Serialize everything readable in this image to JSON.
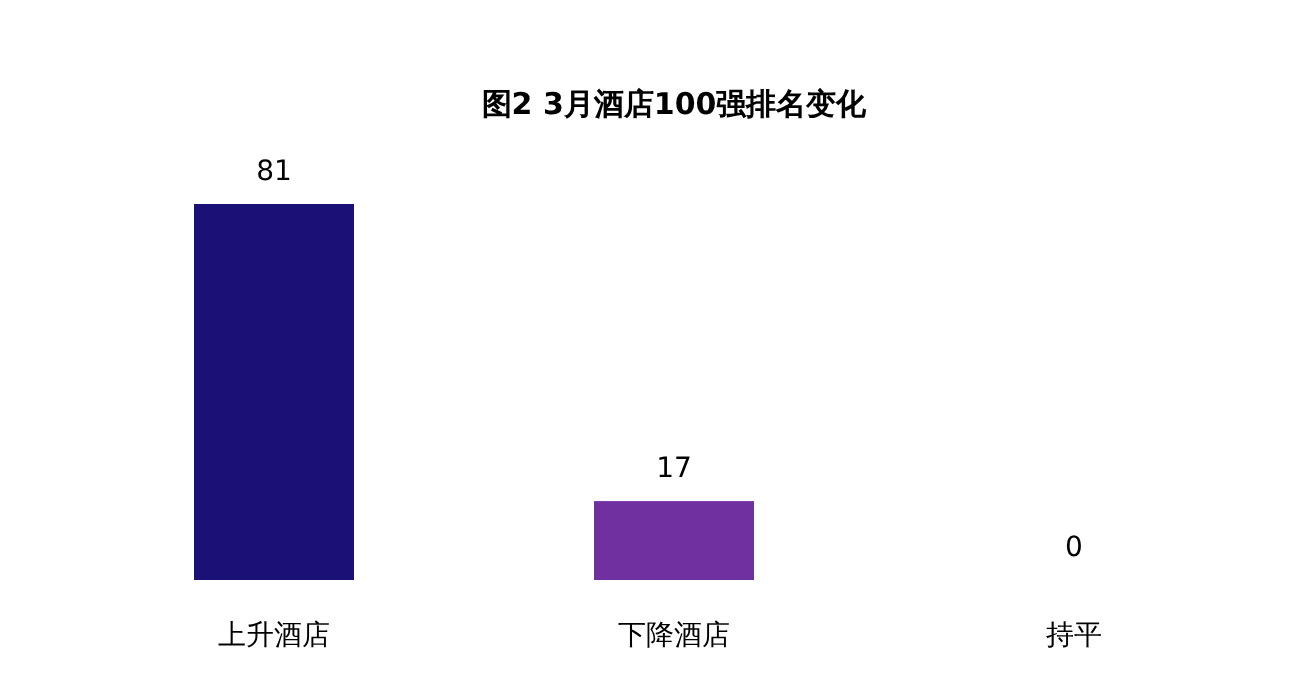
{
  "chart_data": {
    "type": "bar",
    "title": "图2 3月酒店100强排名变化",
    "categories": [
      "上升酒店",
      "下降酒店",
      "持平"
    ],
    "values": [
      81,
      17,
      0
    ],
    "colors": [
      "#1a1075",
      "#7030a0",
      "#7f7f7f"
    ],
    "data_labels": true
  }
}
